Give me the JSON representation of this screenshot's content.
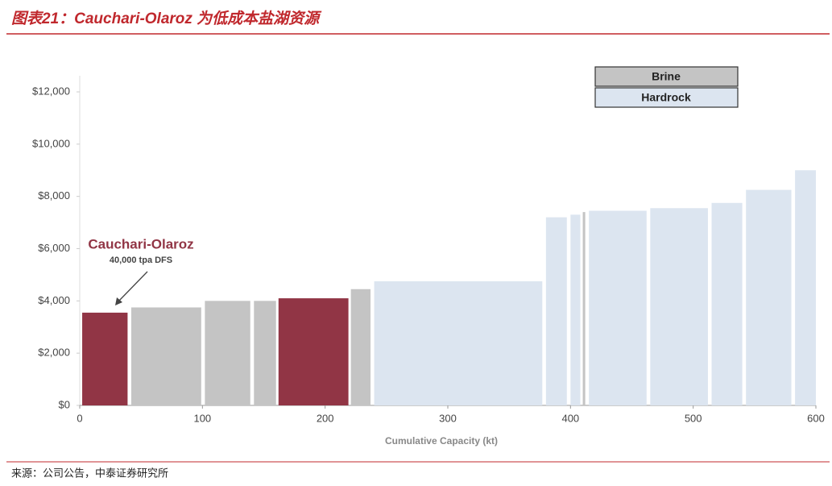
{
  "header": {
    "title": "图表21：Cauchari-Olaroz 为低成本盐湖资源"
  },
  "chart_data": {
    "type": "bar",
    "x_label": "Cumulative Capacity (kt)",
    "xlim": [
      0,
      600
    ],
    "xticks": [
      0,
      100,
      200,
      300,
      400,
      500,
      600
    ],
    "ylim": [
      0,
      12000
    ],
    "yticks": [
      {
        "value": 0,
        "label": "$0"
      },
      {
        "value": 2000,
        "label": "$2,000"
      },
      {
        "value": 4000,
        "label": "$4,000"
      },
      {
        "value": 6000,
        "label": "$6,000"
      },
      {
        "value": 8000,
        "label": "$8,000"
      },
      {
        "value": 10000,
        "label": "$10,000"
      },
      {
        "value": 12000,
        "label": "$12,000"
      }
    ],
    "series": [
      {
        "name": "Brine",
        "color": "#c4c4c4"
      },
      {
        "name": "Hardrock",
        "color": "#dce5f0"
      }
    ],
    "highlight_color": "#913545",
    "bars": [
      {
        "x": [
          2,
          39
        ],
        "value": 3550,
        "series": 0,
        "highlight": true
      },
      {
        "x": [
          42,
          99
        ],
        "value": 3750,
        "series": 0
      },
      {
        "x": [
          102,
          139
        ],
        "value": 4000,
        "series": 0
      },
      {
        "x": [
          142,
          160
        ],
        "value": 4000,
        "series": 0
      },
      {
        "x": [
          162,
          219
        ],
        "value": 4100,
        "series": 0,
        "highlight": true
      },
      {
        "x": [
          221,
          237
        ],
        "value": 4450,
        "series": 0
      },
      {
        "x": [
          240,
          377
        ],
        "value": 4750,
        "series": 1
      },
      {
        "x": [
          380,
          397
        ],
        "value": 7200,
        "series": 1
      },
      {
        "x": [
          400,
          408
        ],
        "value": 7300,
        "series": 1
      },
      {
        "x": [
          410,
          412
        ],
        "value": 7400,
        "series": 0
      },
      {
        "x": [
          415,
          462
        ],
        "value": 7450,
        "series": 1
      },
      {
        "x": [
          465,
          512
        ],
        "value": 7550,
        "series": 1
      },
      {
        "x": [
          515,
          540
        ],
        "value": 7750,
        "series": 1
      },
      {
        "x": [
          543,
          580
        ],
        "value": 8250,
        "series": 1
      },
      {
        "x": [
          583,
          600
        ],
        "value": 9000,
        "series": 1
      }
    ],
    "annotation": {
      "title": "Cauchari-Olaroz",
      "subtitle": "40,000 tpa DFS"
    }
  },
  "footer": {
    "source": "来源：公司公告，中泰证券研究所"
  }
}
